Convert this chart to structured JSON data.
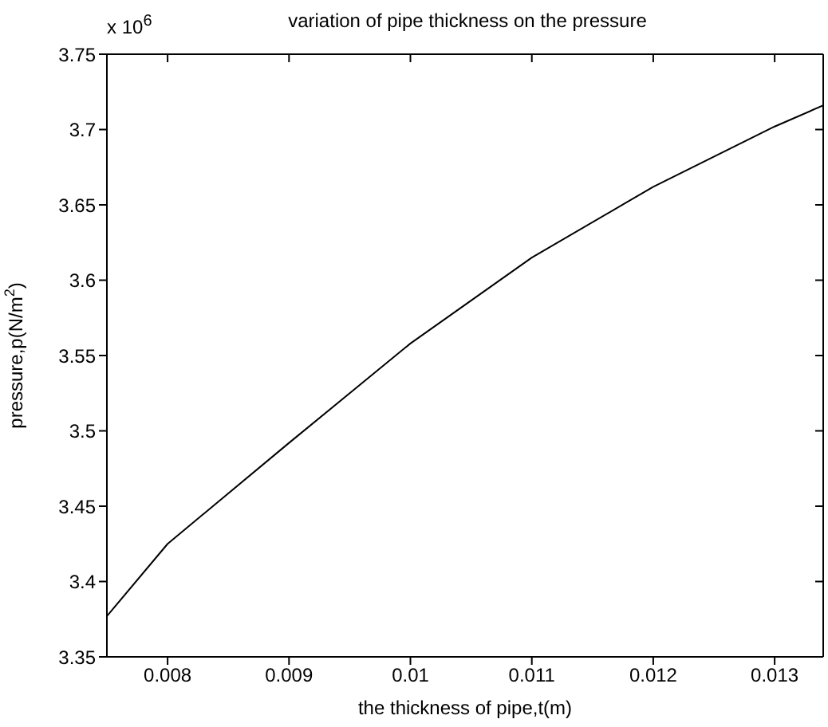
{
  "chart_data": {
    "type": "line",
    "title": "variation of pipe thickness on the pressure",
    "xlabel": "the thickness of pipe,t(m)",
    "ylabel": "pressure,p(N/m$^{2}$)",
    "annotations": [
      "x 10$^{6}$"
    ],
    "x": [
      0.0075,
      0.008,
      0.009,
      0.01,
      0.011,
      0.012,
      0.013,
      0.0134
    ],
    "series": [
      {
        "color": "#000000",
        "values": [
          3.377,
          3.425,
          3.492,
          3.558,
          3.615,
          3.662,
          3.702,
          3.716
        ]
      }
    ],
    "xlim": [
      0.0075,
      0.0134
    ],
    "xticks": [
      0.008,
      0.009,
      0.01,
      0.011,
      0.012,
      0.013
    ],
    "ylim": [
      3.35,
      3.75
    ],
    "yticks": [
      3.35,
      3.4,
      3.45,
      3.5,
      3.55,
      3.6,
      3.65,
      3.7,
      3.75
    ],
    "grid": false,
    "legend": false,
    "marker": "none",
    "line_style": "solid"
  }
}
